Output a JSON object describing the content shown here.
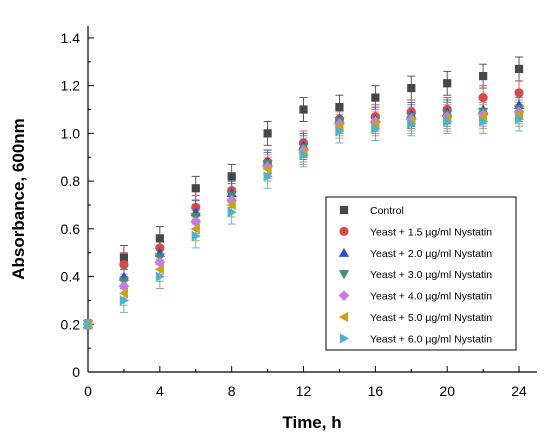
{
  "chart_data": {
    "type": "scatter",
    "xlabel": "Time, h",
    "ylabel": "Absorbance, 600nm",
    "xlim": [
      0,
      25
    ],
    "ylim": [
      0,
      1.45
    ],
    "x_ticks": [
      "0",
      "4",
      "8",
      "12",
      "16",
      "20",
      "24"
    ],
    "y_ticks": [
      "0",
      "0.2",
      "0.4",
      "0.6",
      "0.8",
      "1.0",
      "1.2",
      "1.4"
    ],
    "legend_position": "lower-right",
    "series": [
      {
        "name": "Control",
        "color": "#474747",
        "marker": "square",
        "x": [
          0,
          2,
          4,
          6,
          8,
          10,
          12,
          14,
          16,
          18,
          20,
          22,
          24
        ],
        "y": [
          0.2,
          0.48,
          0.56,
          0.77,
          0.82,
          1.0,
          1.1,
          1.11,
          1.15,
          1.19,
          1.21,
          1.24,
          1.27
        ],
        "err": [
          0.02,
          0.05,
          0.05,
          0.05,
          0.05,
          0.05,
          0.05,
          0.05,
          0.05,
          0.05,
          0.05,
          0.05,
          0.05
        ]
      },
      {
        "name": "Yeast + 1.5 µg/ml Nystatin",
        "color": "#d84a4a",
        "marker": "circle",
        "x": [
          0,
          2,
          4,
          6,
          8,
          10,
          12,
          14,
          16,
          18,
          20,
          22,
          24
        ],
        "y": [
          0.2,
          0.45,
          0.52,
          0.69,
          0.76,
          0.88,
          0.96,
          1.06,
          1.07,
          1.09,
          1.1,
          1.15,
          1.17
        ],
        "err": [
          0.02,
          0.05,
          0.05,
          0.05,
          0.05,
          0.05,
          0.05,
          0.05,
          0.05,
          0.05,
          0.05,
          0.05,
          0.05
        ]
      },
      {
        "name": "Yeast + 2.0 µg/ml Nystatin",
        "color": "#2f4ccc",
        "marker": "triangle-up",
        "x": [
          0,
          2,
          4,
          6,
          8,
          10,
          12,
          14,
          16,
          18,
          20,
          22,
          24
        ],
        "y": [
          0.2,
          0.4,
          0.5,
          0.67,
          0.75,
          0.88,
          0.95,
          1.06,
          1.06,
          1.08,
          1.09,
          1.1,
          1.12
        ],
        "err": [
          0.02,
          0.05,
          0.05,
          0.05,
          0.05,
          0.05,
          0.05,
          0.05,
          0.05,
          0.05,
          0.05,
          0.05,
          0.05
        ]
      },
      {
        "name": "Yeast + 3.0 µg/ml Nystatin",
        "color": "#3f8f6f",
        "marker": "triangle-down",
        "x": [
          0,
          2,
          4,
          6,
          8,
          10,
          12,
          14,
          16,
          18,
          20,
          22,
          24
        ],
        "y": [
          0.2,
          0.38,
          0.48,
          0.65,
          0.74,
          0.87,
          0.94,
          1.05,
          1.05,
          1.07,
          1.08,
          1.09,
          1.1
        ],
        "err": [
          0.02,
          0.05,
          0.05,
          0.05,
          0.05,
          0.05,
          0.05,
          0.05,
          0.05,
          0.05,
          0.05,
          0.05,
          0.05
        ]
      },
      {
        "name": "Yeast + 4.0 µg/ml Nystatin",
        "color": "#c67ce0",
        "marker": "diamond",
        "x": [
          0,
          2,
          4,
          6,
          8,
          10,
          12,
          14,
          16,
          18,
          20,
          22,
          24
        ],
        "y": [
          0.2,
          0.36,
          0.46,
          0.63,
          0.72,
          0.86,
          0.93,
          1.04,
          1.05,
          1.06,
          1.07,
          1.08,
          1.09
        ],
        "err": [
          0.02,
          0.05,
          0.05,
          0.05,
          0.05,
          0.05,
          0.05,
          0.05,
          0.05,
          0.05,
          0.05,
          0.05,
          0.05
        ]
      },
      {
        "name": "Yeast + 5.0 µg/ml Nystatin",
        "color": "#c8a21a",
        "marker": "triangle-left",
        "x": [
          0,
          2,
          4,
          6,
          8,
          10,
          12,
          14,
          16,
          18,
          20,
          22,
          24
        ],
        "y": [
          0.2,
          0.33,
          0.43,
          0.6,
          0.7,
          0.85,
          0.92,
          1.03,
          1.04,
          1.05,
          1.06,
          1.07,
          1.08
        ],
        "err": [
          0.02,
          0.05,
          0.05,
          0.05,
          0.05,
          0.05,
          0.05,
          0.05,
          0.05,
          0.05,
          0.05,
          0.05,
          0.05
        ]
      },
      {
        "name": "Yeast + 6.0 µg/ml Nystatin",
        "color": "#4fb3c8",
        "marker": "triangle-right",
        "x": [
          0,
          2,
          4,
          6,
          8,
          10,
          12,
          14,
          16,
          18,
          20,
          22,
          24
        ],
        "y": [
          0.2,
          0.3,
          0.4,
          0.57,
          0.67,
          0.82,
          0.91,
          1.01,
          1.02,
          1.04,
          1.05,
          1.05,
          1.06
        ],
        "err": [
          0.02,
          0.05,
          0.05,
          0.05,
          0.05,
          0.05,
          0.05,
          0.05,
          0.05,
          0.05,
          0.05,
          0.05,
          0.05
        ]
      }
    ]
  }
}
